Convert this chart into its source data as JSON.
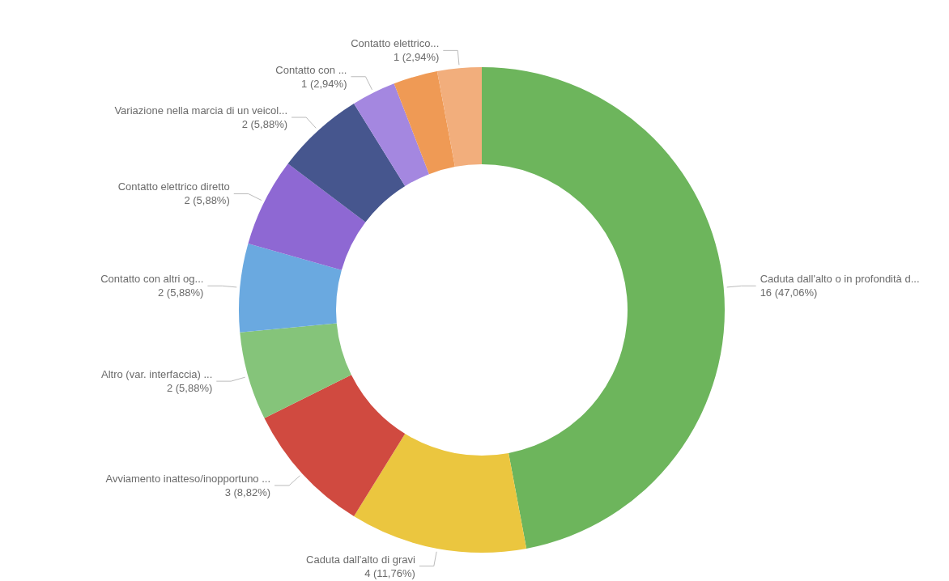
{
  "chart_data": {
    "type": "donut",
    "categories": [
      "Caduta dall'alto o in profondità d...",
      "Caduta dall'alto di gravi",
      "Avviamento inatteso/inopportuno ...",
      "Altro (var. interfaccia) ...",
      "Contatto con altri og...",
      "Contatto elettrico diretto",
      "Variazione nella marcia di un veicol...",
      "Contatto con ...",
      null,
      "Contatto elettrico..."
    ],
    "values": [
      16,
      4,
      3,
      2,
      2,
      2,
      2,
      1,
      1,
      1
    ],
    "value_labels": [
      "16 (47,06%)",
      "4 (11,76%)",
      "3 (8,82%)",
      "2 (5,88%)",
      "2 (5,88%)",
      "2 (5,88%)",
      "2 (5,88%)",
      "1 (2,94%)",
      null,
      "1 (2,94%)"
    ],
    "colors": [
      "#6db55c",
      "#ebc63f",
      "#d04a40",
      "#85c47a",
      "#6aa9e0",
      "#8e68d3",
      "#46568e",
      "#a487e0",
      "#ef9a55",
      "#f2ae7c"
    ]
  }
}
